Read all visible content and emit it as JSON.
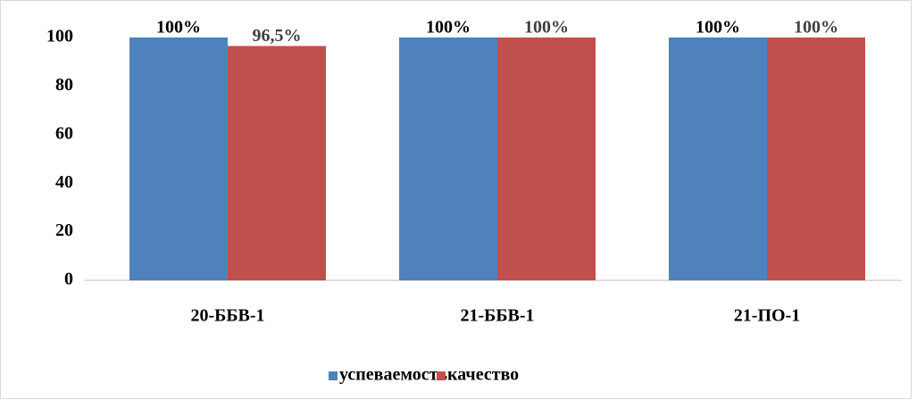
{
  "chart_data": {
    "type": "bar",
    "categories": [
      "20-ББВ-1",
      "21-ББВ-1",
      "21-ПО-1"
    ],
    "series": [
      {
        "name": "успеваемость",
        "color": "#4f81bd",
        "values": [
          100,
          100,
          100
        ],
        "value_labels": [
          "100%",
          "100%",
          "100%"
        ]
      },
      {
        "name": "качество",
        "color": "#c0504d",
        "values": [
          96.5,
          100,
          100
        ],
        "value_labels": [
          "96,5%",
          "100%",
          "100%"
        ]
      }
    ],
    "ylim": [
      0,
      100
    ],
    "yticks": [
      0,
      20,
      40,
      60,
      80,
      100
    ],
    "grid": false,
    "legend": "bottom"
  }
}
